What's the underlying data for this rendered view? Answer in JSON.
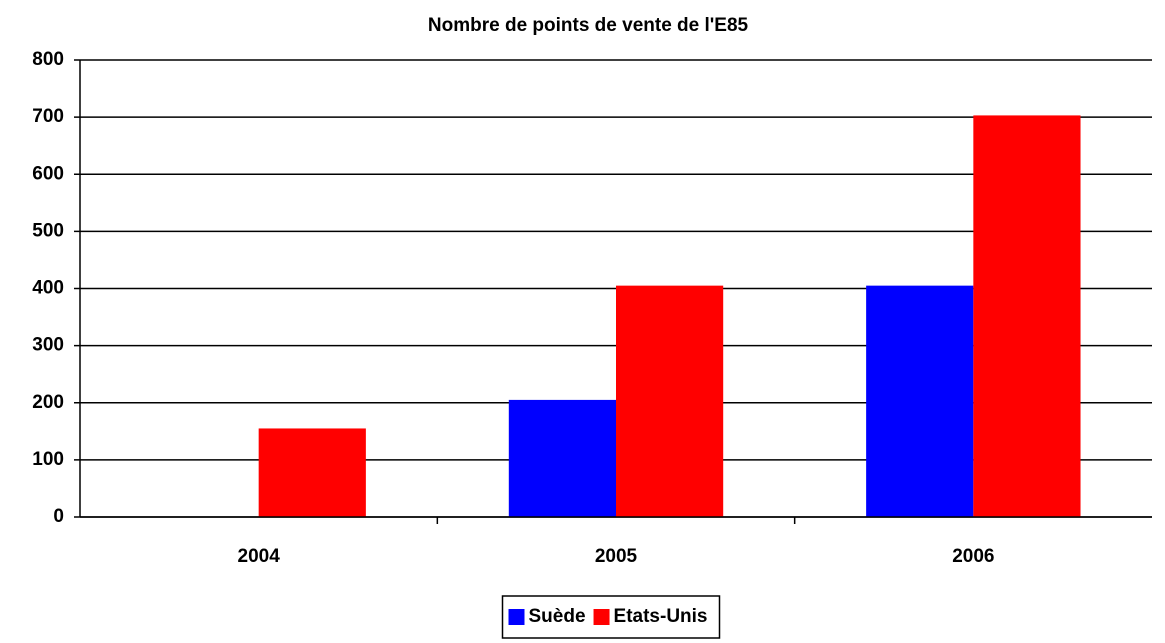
{
  "chart_data": {
    "type": "bar",
    "title": "Nombre de points de vente de l'E85",
    "categories": [
      "2004",
      "2005",
      "2006"
    ],
    "series": [
      {
        "name": "Suède",
        "color": "#0000ff",
        "values": [
          null,
          205,
          405
        ]
      },
      {
        "name": "Etats-Unis",
        "color": "#ff0000",
        "values": [
          155,
          405,
          703
        ]
      }
    ],
    "ylim": [
      0,
      800
    ],
    "yticks": [
      0,
      100,
      200,
      300,
      400,
      500,
      600,
      700,
      800
    ],
    "grid": true,
    "legend": "bottom"
  }
}
